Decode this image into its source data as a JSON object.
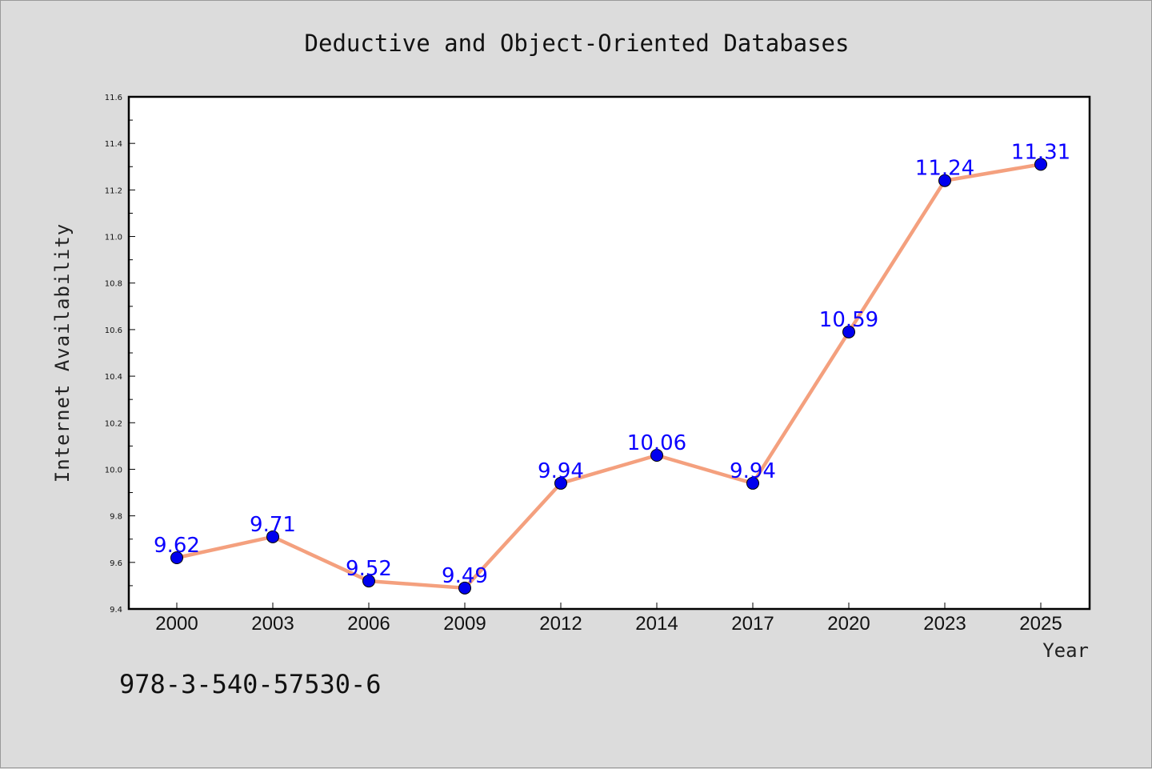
{
  "chart_data": {
    "type": "line",
    "title": "Deductive and Object-Oriented Databases",
    "xlabel": "Year",
    "ylabel": "Internet Availability",
    "categories": [
      "2000",
      "2003",
      "2006",
      "2009",
      "2012",
      "2014",
      "2017",
      "2020",
      "2023",
      "2025"
    ],
    "series": [
      {
        "values": [
          9.62,
          9.71,
          9.52,
          9.49,
          9.94,
          10.06,
          9.94,
          10.59,
          11.24,
          11.31
        ],
        "data_labels": [
          "9.62",
          "9.71",
          "9.52",
          "9.49",
          "9.94",
          "10.06",
          "9.94",
          "10.59",
          "11.24",
          "11.31"
        ],
        "line_color": "#f4a07e",
        "marker_color": "#0000ee",
        "label_color": "#0a00ff"
      }
    ],
    "ylim": [
      9.4,
      11.6
    ],
    "yticks": [
      "9.4",
      "9.6",
      "9.8",
      "10.0",
      "10.2",
      "10.4",
      "10.6",
      "10.8",
      "11.0",
      "11.2",
      "11.4",
      "11.6"
    ],
    "grid": false,
    "legend": "none",
    "annotation": "978-3-540-57530-6",
    "colors": {
      "background": "#dcdcdc",
      "plot_background": "#ffffff"
    }
  }
}
